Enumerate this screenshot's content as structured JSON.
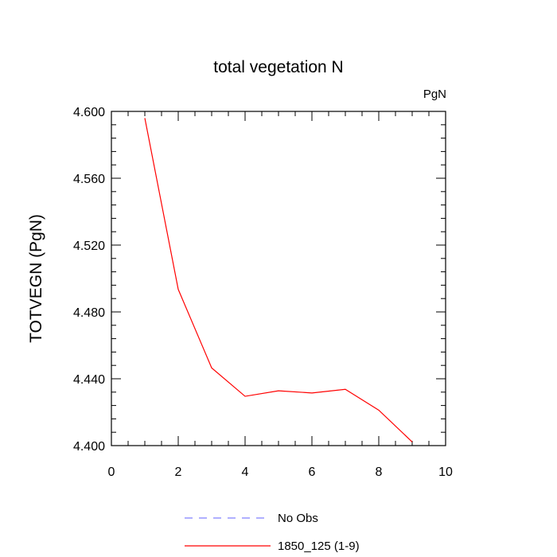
{
  "chart_data": {
    "type": "line",
    "title": "total vegetation N",
    "units_label": "PgN",
    "ylabel": "TOTVEGN  (PgN)",
    "xlabel": "",
    "xlim": [
      0,
      10
    ],
    "ylim": [
      4.4,
      4.6
    ],
    "x_ticks": [
      0,
      2,
      4,
      6,
      8,
      10
    ],
    "x_tick_labels": [
      "0",
      "2",
      "4",
      "6",
      "8",
      "10"
    ],
    "y_ticks": [
      4.4,
      4.44,
      4.48,
      4.52,
      4.56,
      4.6
    ],
    "y_tick_labels": [
      "4.400",
      "4.440",
      "4.480",
      "4.520",
      "4.560",
      "4.600"
    ],
    "grid": false,
    "legend_position": "bottom",
    "series": [
      {
        "name": "No Obs",
        "color": "#8080ff",
        "dash": "dashed",
        "x": [],
        "y": []
      },
      {
        "name": "1850_125 (1-9)",
        "color": "#ff0000",
        "dash": "solid",
        "x": [
          1,
          2,
          3,
          4,
          5,
          6,
          7,
          8,
          9
        ],
        "y": [
          4.596,
          4.4935,
          4.4465,
          4.4295,
          4.4328,
          4.4315,
          4.4337,
          4.4212,
          4.4022
        ]
      }
    ]
  }
}
